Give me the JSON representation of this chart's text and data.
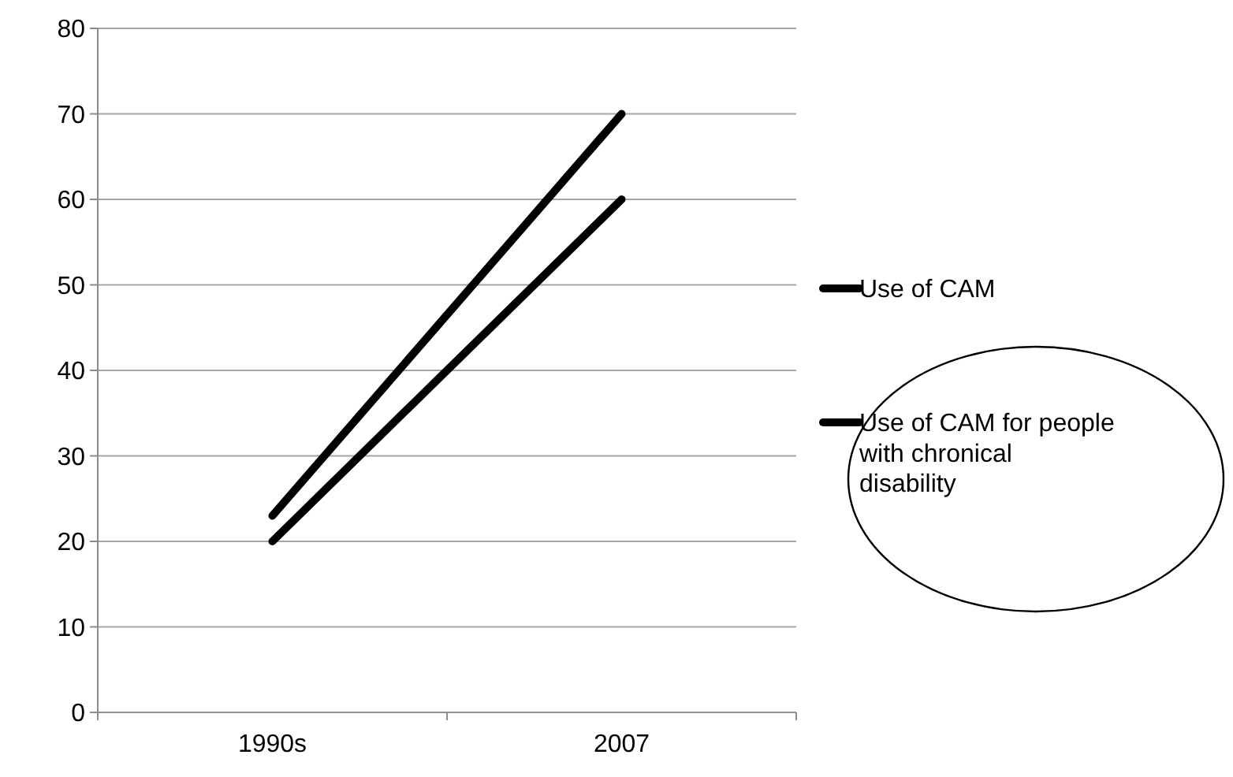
{
  "chart_data": {
    "type": "line",
    "categories": [
      "1990s",
      "2007"
    ],
    "series": [
      {
        "name": "Use of CAM",
        "color": "#000000",
        "values": [
          20,
          60
        ]
      },
      {
        "name": "Use of CAM for people with chronical disability",
        "color": "#000000",
        "values": [
          23,
          70
        ]
      }
    ],
    "ylim": [
      0,
      80
    ],
    "yticks": [
      0,
      10,
      20,
      30,
      40,
      50,
      60,
      70,
      80
    ],
    "grid": "y",
    "legend": "right",
    "marker": "none",
    "line_style": "solid"
  }
}
